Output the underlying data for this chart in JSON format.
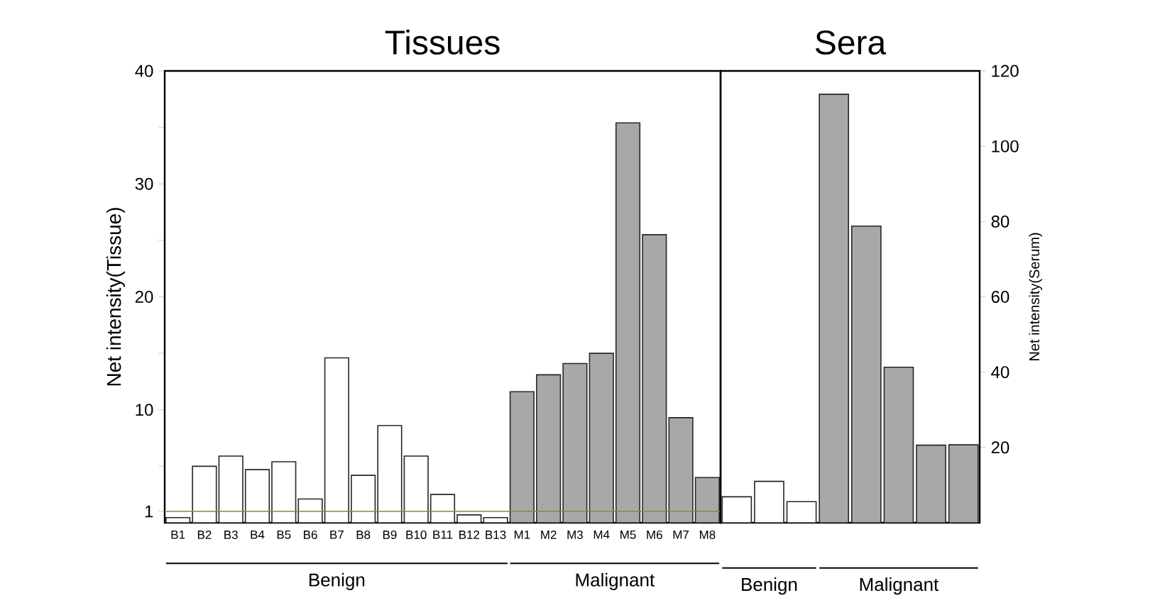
{
  "chart_data": [
    {
      "type": "bar",
      "title": "Tissues",
      "ylabel": "Net intensity(Tissue)",
      "categories": [
        "B1",
        "B2",
        "B3",
        "B4",
        "B5",
        "B6",
        "B7",
        "B8",
        "B9",
        "B10",
        "B11",
        "B12",
        "B13",
        "M1",
        "M2",
        "M3",
        "M4",
        "M5",
        "M6",
        "M7",
        "M8"
      ],
      "values": [
        0.45,
        5.0,
        5.9,
        4.7,
        5.4,
        2.1,
        14.6,
        4.2,
        8.6,
        5.9,
        2.5,
        0.7,
        0.45,
        11.6,
        13.1,
        14.1,
        15.0,
        35.4,
        25.5,
        9.3,
        4.0
      ],
      "colors": [
        "#ffffff",
        "#ffffff",
        "#ffffff",
        "#ffffff",
        "#ffffff",
        "#ffffff",
        "#ffffff",
        "#ffffff",
        "#ffffff",
        "#ffffff",
        "#ffffff",
        "#ffffff",
        "#ffffff",
        "#a8a8a8",
        "#a8a8a8",
        "#a8a8a8",
        "#a8a8a8",
        "#a8a8a8",
        "#a8a8a8",
        "#a8a8a8",
        "#a8a8a8"
      ],
      "ylim": [
        0,
        40
      ],
      "yticks": [
        1,
        {
          "value": 5,
          "label": null
        },
        10,
        {
          "value": 15,
          "label": null
        },
        20,
        {
          "value": 25,
          "label": null
        },
        30,
        {
          "value": 35,
          "label": null
        },
        40
      ],
      "ref_lines": [
        {
          "axis": "y",
          "value": 1,
          "color": "#8c8050"
        }
      ],
      "annotations": [
        "Benign",
        "Malignant"
      ]
    },
    {
      "type": "bar",
      "title": "Sera",
      "ylabel": "Net intensity(Serum)",
      "categories": [
        null,
        null,
        null,
        null,
        null,
        null,
        null,
        null
      ],
      "values": [
        6.9,
        11.0,
        5.6,
        113.8,
        78.8,
        41.3,
        20.6,
        20.7
      ],
      "colors": [
        "#ffffff",
        "#ffffff",
        "#ffffff",
        "#a8a8a8",
        "#a8a8a8",
        "#a8a8a8",
        "#a8a8a8",
        "#a8a8a8"
      ],
      "ylim": [
        0,
        120
      ],
      "yticks": [
        20,
        40,
        60,
        80,
        100,
        120
      ],
      "annotations": [
        "Benign",
        "Malignant"
      ]
    }
  ]
}
